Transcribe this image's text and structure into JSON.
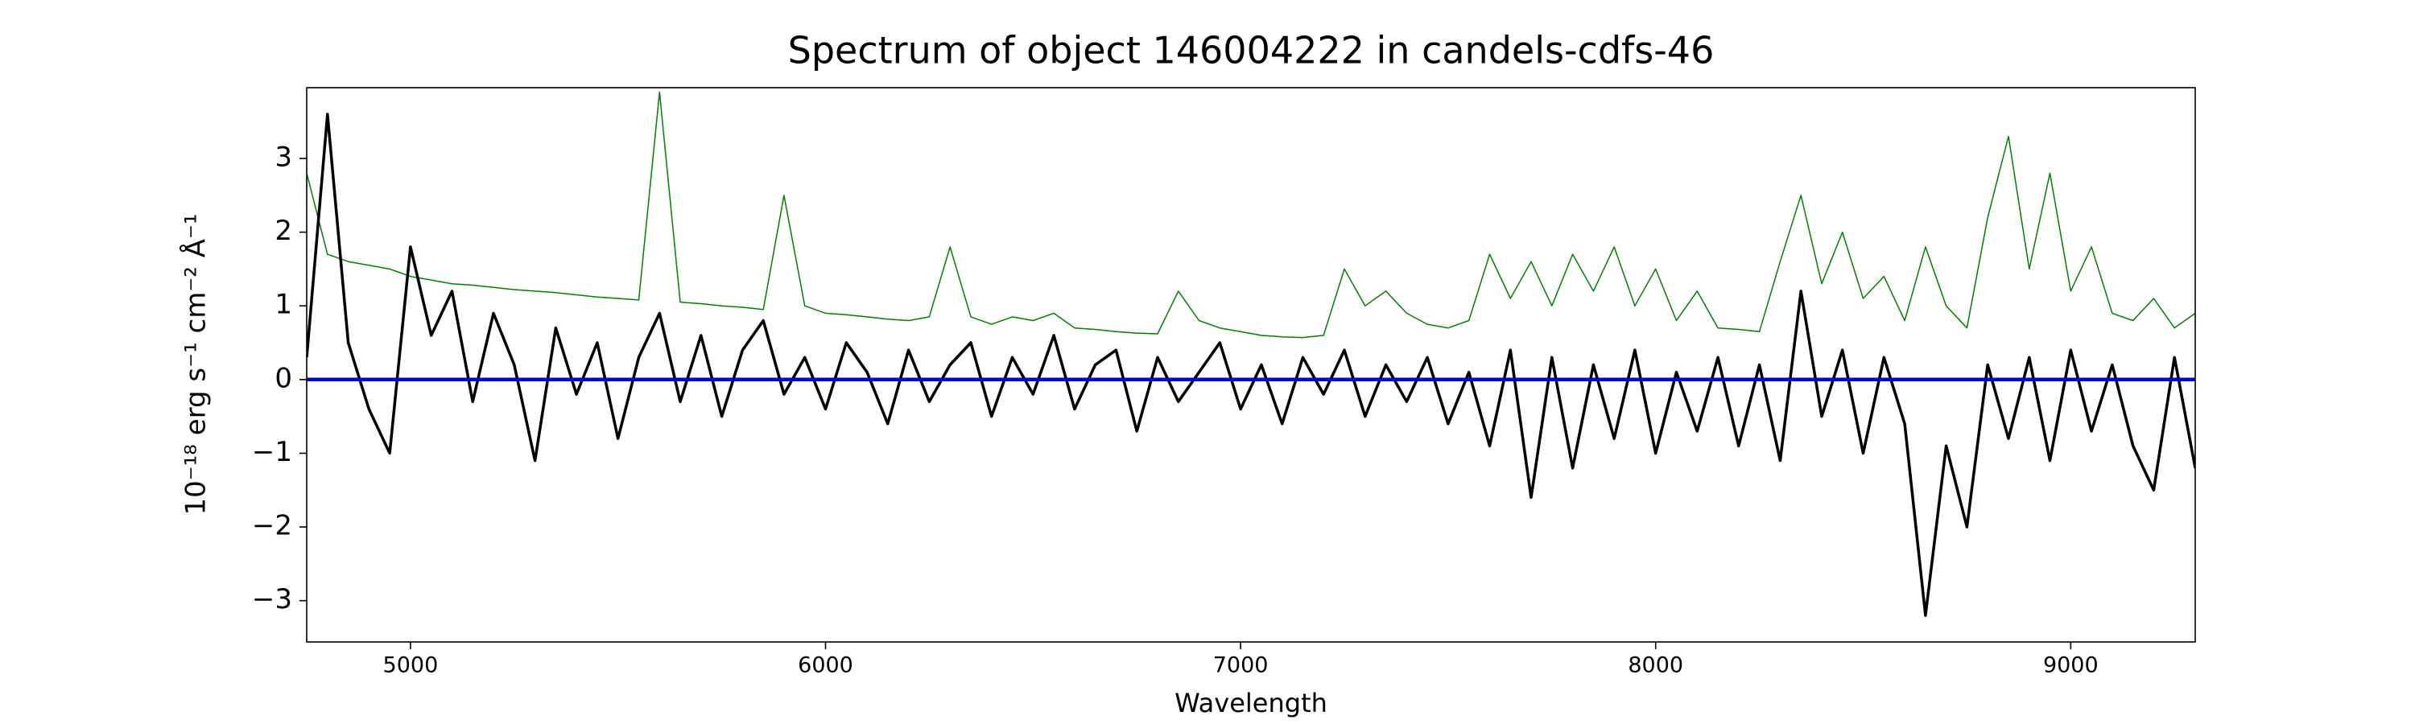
{
  "chart_data": {
    "type": "line",
    "title": "Spectrum of object 146004222 in candels-cdfs-46",
    "xlabel": "Wavelength",
    "ylabel": "10⁻¹⁸ erg s⁻¹ cm⁻² Å⁻¹",
    "xlim": [
      4750,
      9300
    ],
    "ylim": [
      -3.56,
      3.96
    ],
    "xticks": [
      5000,
      6000,
      7000,
      8000,
      9000
    ],
    "yticks": [
      {
        "value": -3,
        "label": "−3"
      },
      {
        "value": -2,
        "label": "−2"
      },
      {
        "value": -1,
        "label": "−1"
      },
      0,
      1,
      2,
      3
    ],
    "x": [
      4750,
      4800,
      4850,
      4900,
      4950,
      5000,
      5050,
      5100,
      5150,
      5200,
      5250,
      5300,
      5350,
      5400,
      5450,
      5500,
      5550,
      5600,
      5650,
      5700,
      5750,
      5800,
      5850,
      5900,
      5950,
      6000,
      6050,
      6100,
      6150,
      6200,
      6250,
      6300,
      6350,
      6400,
      6450,
      6500,
      6550,
      6600,
      6650,
      6700,
      6750,
      6800,
      6850,
      6900,
      6950,
      7000,
      7050,
      7100,
      7150,
      7200,
      7250,
      7300,
      7350,
      7400,
      7450,
      7500,
      7550,
      7600,
      7650,
      7700,
      7750,
      7800,
      7850,
      7900,
      7950,
      8000,
      8050,
      8100,
      8150,
      8200,
      8250,
      8300,
      8350,
      8400,
      8450,
      8500,
      8550,
      8600,
      8650,
      8700,
      8750,
      8800,
      8850,
      8900,
      8950,
      9000,
      9050,
      9100,
      9150,
      9200,
      9250,
      9300
    ],
    "series": [
      {
        "color": "#008000",
        "width": 1.5,
        "values": [
          2.8,
          1.7,
          1.6,
          1.55,
          1.5,
          1.4,
          1.35,
          1.3,
          1.28,
          1.25,
          1.22,
          1.2,
          1.18,
          1.15,
          1.12,
          1.1,
          1.08,
          3.9,
          1.05,
          1.03,
          1.0,
          0.98,
          0.95,
          2.5,
          1.0,
          0.9,
          0.88,
          0.85,
          0.82,
          0.8,
          0.85,
          1.8,
          0.85,
          0.75,
          0.85,
          0.8,
          0.9,
          0.7,
          0.68,
          0.65,
          0.63,
          0.62,
          1.2,
          0.8,
          0.7,
          0.65,
          0.6,
          0.58,
          0.57,
          0.6,
          1.5,
          1.0,
          1.2,
          0.9,
          0.75,
          0.7,
          0.8,
          1.7,
          1.1,
          1.6,
          1.0,
          1.7,
          1.2,
          1.8,
          1.0,
          1.5,
          0.8,
          1.2,
          0.7,
          0.68,
          0.65,
          1.6,
          2.5,
          1.3,
          2.0,
          1.1,
          1.4,
          0.8,
          1.8,
          1.0,
          0.7,
          2.2,
          3.3,
          1.5,
          2.8,
          1.2,
          1.8,
          0.9,
          0.8,
          1.1,
          0.7,
          0.9
        ]
      },
      {
        "color": "#000000",
        "width": 3.5,
        "values": [
          0.3,
          3.6,
          0.5,
          -0.4,
          -1.0,
          1.8,
          0.6,
          1.2,
          -0.3,
          0.9,
          0.2,
          -1.1,
          0.7,
          -0.2,
          0.5,
          -0.8,
          0.3,
          0.9,
          -0.3,
          0.6,
          -0.5,
          0.4,
          0.8,
          -0.2,
          0.3,
          -0.4,
          0.5,
          0.1,
          -0.6,
          0.4,
          -0.3,
          0.2,
          0.5,
          -0.5,
          0.3,
          -0.2,
          0.6,
          -0.4,
          0.2,
          0.4,
          -0.7,
          0.3,
          -0.3,
          0.1,
          0.5,
          -0.4,
          0.2,
          -0.6,
          0.3,
          -0.2,
          0.4,
          -0.5,
          0.2,
          -0.3,
          0.3,
          -0.6,
          0.1,
          -0.9,
          0.4,
          -1.6,
          0.3,
          -1.2,
          0.2,
          -0.8,
          0.4,
          -1.0,
          0.1,
          -0.7,
          0.3,
          -0.9,
          0.2,
          -1.1,
          1.2,
          -0.5,
          0.4,
          -1.0,
          0.3,
          -0.6,
          -3.2,
          -0.9,
          -2.0,
          0.2,
          -0.8,
          0.3,
          -1.1,
          0.4,
          -0.7,
          0.2,
          -0.9,
          -1.5,
          0.3,
          -1.2
        ]
      },
      {
        "color": "#0000cc",
        "width": 4.5,
        "x": [
          4750,
          9300
        ],
        "values": [
          0,
          0
        ]
      }
    ]
  }
}
